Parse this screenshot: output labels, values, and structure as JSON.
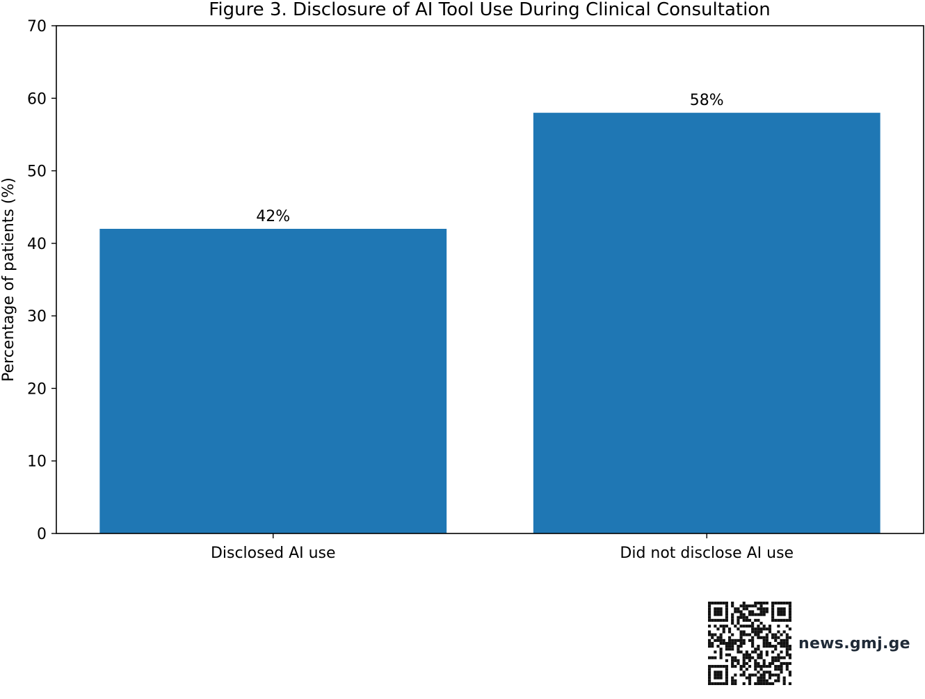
{
  "chart_data": {
    "type": "bar",
    "title": "Figure 3. Disclosure of AI Tool Use During Clinical Consultation",
    "xlabel": "",
    "ylabel": "Percentage of patients (%)",
    "categories": [
      "Disclosed AI use",
      "Did not disclose AI use"
    ],
    "values": [
      42,
      58
    ],
    "data_labels": [
      "42%",
      "58%"
    ],
    "ylim": [
      0,
      70
    ],
    "yticks": [
      0,
      10,
      20,
      30,
      40,
      50,
      60,
      70
    ],
    "bar_color": "#1f77b4",
    "grid": false,
    "legend": "none"
  },
  "watermark": {
    "text": "news.gmj.ge",
    "qr_icon": "qr-code-icon"
  }
}
